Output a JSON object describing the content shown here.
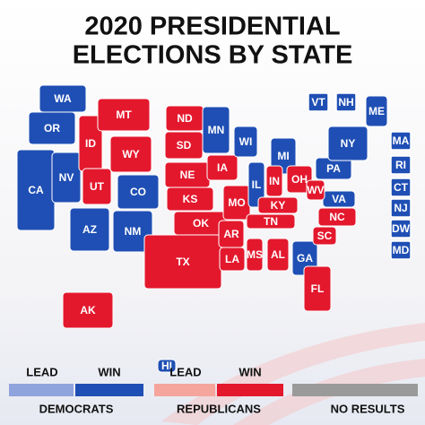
{
  "title": [
    "2020 PRESIDENTIAL",
    "ELECTIONS BY STATE"
  ],
  "states": [
    {
      "label": "WA",
      "color": "#1f4fb4"
    },
    {
      "label": "OR",
      "color": "#1f4fb4"
    },
    {
      "label": "CA",
      "color": "#1f4fb4"
    },
    {
      "label": "NV",
      "color": "#1f4fb4"
    },
    {
      "label": "ID",
      "color": "#e3182d"
    },
    {
      "label": "MT",
      "color": "#e3182d"
    },
    {
      "label": "WY",
      "color": "#e3182d"
    },
    {
      "label": "UT",
      "color": "#e3182d"
    },
    {
      "label": "CO",
      "color": "#1f4fb4"
    },
    {
      "label": "AZ",
      "color": "#1f4fb4"
    },
    {
      "label": "NM",
      "color": "#1f4fb4"
    },
    {
      "label": "ND",
      "color": "#e3182d"
    },
    {
      "label": "SD",
      "color": "#e3182d"
    },
    {
      "label": "NE",
      "color": "#e3182d"
    },
    {
      "label": "KS",
      "color": "#e3182d"
    },
    {
      "label": "OK",
      "color": "#e3182d"
    },
    {
      "label": "TX",
      "color": "#e3182d"
    },
    {
      "label": "MN",
      "color": "#1f4fb4"
    },
    {
      "label": "IA",
      "color": "#e3182d"
    },
    {
      "label": "MO",
      "color": "#e3182d"
    },
    {
      "label": "AR",
      "color": "#e3182d"
    },
    {
      "label": "LA",
      "color": "#e3182d"
    },
    {
      "label": "WI",
      "color": "#1f4fb4"
    },
    {
      "label": "IL",
      "color": "#1f4fb4"
    },
    {
      "label": "MI",
      "color": "#1f4fb4"
    },
    {
      "label": "IN",
      "color": "#e3182d"
    },
    {
      "label": "OH",
      "color": "#e3182d"
    },
    {
      "label": "KY",
      "color": "#e3182d"
    },
    {
      "label": "TN",
      "color": "#e3182d"
    },
    {
      "label": "MS",
      "color": "#e3182d"
    },
    {
      "label": "AL",
      "color": "#e3182d"
    },
    {
      "label": "GA",
      "color": "#1f4fb4"
    },
    {
      "label": "FL",
      "color": "#e3182d"
    },
    {
      "label": "SC",
      "color": "#e3182d"
    },
    {
      "label": "NC",
      "color": "#e3182d"
    },
    {
      "label": "VA",
      "color": "#1f4fb4"
    },
    {
      "label": "WV",
      "color": "#e3182d"
    },
    {
      "label": "PA",
      "color": "#1f4fb4"
    },
    {
      "label": "NY",
      "color": "#1f4fb4"
    },
    {
      "label": "ME",
      "color": "#1f4fb4"
    },
    {
      "label": "AK",
      "color": "#e3182d"
    },
    {
      "label": "HI",
      "color": "#1f4fb4"
    },
    {
      "label": "VT",
      "color": "#1f4fb4",
      "boxed": true
    },
    {
      "label": "NH",
      "color": "#1f4fb4",
      "boxed": true
    },
    {
      "label": "MA",
      "color": "#1f4fb4",
      "boxed": true
    },
    {
      "label": "RI",
      "color": "#1f4fb4",
      "boxed": true
    },
    {
      "label": "CT",
      "color": "#1f4fb4",
      "boxed": true
    },
    {
      "label": "NJ",
      "color": "#1f4fb4",
      "boxed": true
    },
    {
      "label": "DW",
      "color": "#1f4fb4",
      "boxed": true
    },
    {
      "label": "MD",
      "color": "#1f4fb4",
      "boxed": true
    }
  ],
  "legend": [
    {
      "name": "DEMOCRATS",
      "lead": "LEAD",
      "win": "WIN",
      "lead_color": "#8fa3dc",
      "win_color": "#1f4fb4"
    },
    {
      "name": "REPUBLICANS",
      "lead": "LEAD",
      "win": "WIN",
      "lead_color": "#f5a59b",
      "win_color": "#e3182d"
    },
    {
      "name": "NO RESULTS",
      "color": "#9a9a9a"
    }
  ]
}
